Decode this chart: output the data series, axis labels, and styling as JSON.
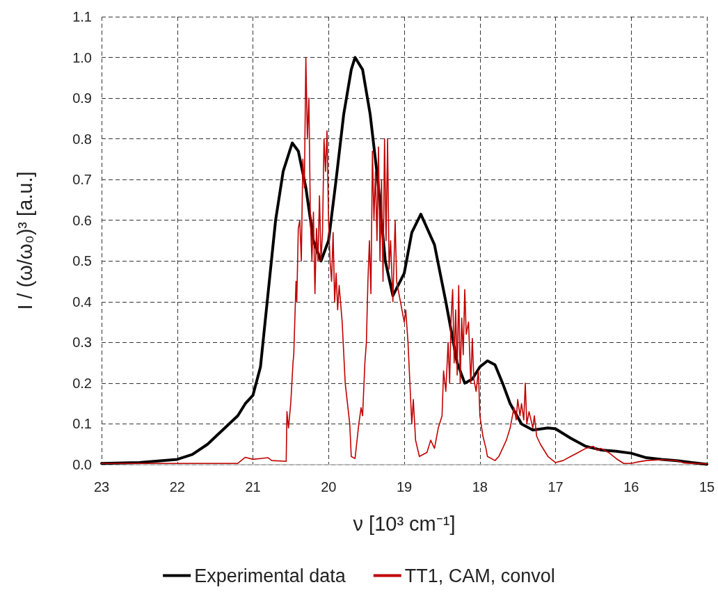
{
  "chart_data": {
    "type": "line",
    "xlabel": "ν [10³ cm⁻¹]",
    "ylabel": "I / (ω/ω₀)³ [a.u.]",
    "xlim": [
      23,
      15
    ],
    "xticks": [
      23,
      22,
      21,
      20,
      19,
      18,
      17,
      16,
      15
    ],
    "ylim": [
      0,
      1.1
    ],
    "yticks": [
      {
        "value": 0,
        "label": "0.0"
      },
      0.1,
      0.2,
      0.3,
      0.4,
      0.5,
      0.6,
      0.7,
      0.8,
      0.9,
      {
        "value": 1,
        "label": "1.0"
      },
      1.1
    ],
    "grid": true,
    "legend": "bottom",
    "marker": "none",
    "line_style": "solid",
    "series": [
      {
        "name": "Experimental data",
        "color": "#000000",
        "x": [
          23,
          22.5,
          22,
          21.8,
          21.6,
          21.4,
          21.2,
          21.1,
          21.0,
          20.9,
          20.8,
          20.7,
          20.6,
          20.48,
          20.4,
          20.3,
          20.2,
          20.1,
          20.0,
          19.9,
          19.8,
          19.7,
          19.65,
          19.55,
          19.45,
          19.35,
          19.25,
          19.15,
          19.0,
          18.9,
          18.78,
          18.6,
          18.45,
          18.3,
          18.2,
          18.1,
          18.0,
          17.9,
          17.8,
          17.7,
          17.6,
          17.45,
          17.3,
          17.1,
          17.0,
          16.8,
          16.6,
          16.4,
          16.2,
          16.0,
          15.8,
          15.6,
          15.4,
          15.2,
          15.0
        ],
        "values": [
          0.003,
          0.005,
          0.013,
          0.025,
          0.05,
          0.085,
          0.12,
          0.15,
          0.17,
          0.24,
          0.42,
          0.6,
          0.72,
          0.79,
          0.77,
          0.68,
          0.55,
          0.5,
          0.55,
          0.7,
          0.86,
          0.97,
          1.0,
          0.97,
          0.86,
          0.7,
          0.5,
          0.415,
          0.47,
          0.57,
          0.615,
          0.54,
          0.4,
          0.25,
          0.2,
          0.21,
          0.24,
          0.255,
          0.245,
          0.2,
          0.15,
          0.1,
          0.085,
          0.09,
          0.088,
          0.065,
          0.045,
          0.036,
          0.033,
          0.028,
          0.017,
          0.013,
          0.01,
          0.005,
          0.001
        ]
      },
      {
        "name": "TT1, CAM, convol",
        "color": "#c00000",
        "x": [
          23,
          21.2,
          21.1,
          21.0,
          20.9,
          20.8,
          20.75,
          20.56,
          20.55,
          20.53,
          20.5,
          20.47,
          20.46,
          20.43,
          20.42,
          20.4,
          20.38,
          20.36,
          20.34,
          20.32,
          20.3,
          20.28,
          20.26,
          20.24,
          20.22,
          20.2,
          20.18,
          20.16,
          20.14,
          20.12,
          20.1,
          20.08,
          20.06,
          20.04,
          20.02,
          20.0,
          19.98,
          19.96,
          19.94,
          19.92,
          19.9,
          19.88,
          19.86,
          19.82,
          19.78,
          19.75,
          19.72,
          19.7,
          19.65,
          19.6,
          19.57,
          19.55,
          19.52,
          19.5,
          19.48,
          19.46,
          19.44,
          19.42,
          19.4,
          19.38,
          19.36,
          19.34,
          19.32,
          19.3,
          19.28,
          19.26,
          19.24,
          19.22,
          19.2,
          19.18,
          19.15,
          19.12,
          19.1,
          19.05,
          19.0,
          18.98,
          18.95,
          18.9,
          18.88,
          18.85,
          18.8,
          18.7,
          18.65,
          18.6,
          18.55,
          18.5,
          18.48,
          18.45,
          18.42,
          18.4,
          18.38,
          18.36,
          18.34,
          18.32,
          18.3,
          18.28,
          18.26,
          18.24,
          18.22,
          18.2,
          18.18,
          18.15,
          18.12,
          18.1,
          18.08,
          18.05,
          18.02,
          18.0,
          17.96,
          17.92,
          17.9,
          17.8,
          17.75,
          17.7,
          17.65,
          17.6,
          17.55,
          17.52,
          17.5,
          17.47,
          17.45,
          17.42,
          17.4,
          17.38,
          17.35,
          17.3,
          17.28,
          17.25,
          17.2,
          17.1,
          17.0,
          16.9,
          16.8,
          16.7,
          16.6,
          16.5,
          16.45,
          16.4,
          16.3,
          16.2,
          16.1,
          16.0,
          15.9,
          15.8,
          15.6,
          15.4,
          15.3,
          15.0
        ],
        "values": [
          0.003,
          0.003,
          0.018,
          0.013,
          0.015,
          0.017,
          0.01,
          0.008,
          0.13,
          0.09,
          0.15,
          0.25,
          0.27,
          0.45,
          0.4,
          0.58,
          0.6,
          0.5,
          0.75,
          0.68,
          1.0,
          0.8,
          0.9,
          0.6,
          0.5,
          0.62,
          0.42,
          0.58,
          0.5,
          0.66,
          0.5,
          0.57,
          0.8,
          0.72,
          0.82,
          0.6,
          0.5,
          0.45,
          0.57,
          0.4,
          0.47,
          0.38,
          0.44,
          0.35,
          0.2,
          0.15,
          0.1,
          0.02,
          0.015,
          0.1,
          0.14,
          0.12,
          0.25,
          0.3,
          0.45,
          0.55,
          0.42,
          0.77,
          0.6,
          0.72,
          0.55,
          0.78,
          0.5,
          0.7,
          0.45,
          0.8,
          0.55,
          0.8,
          0.48,
          0.55,
          0.4,
          0.6,
          0.45,
          0.4,
          0.35,
          0.38,
          0.3,
          0.1,
          0.16,
          0.06,
          0.02,
          0.03,
          0.06,
          0.04,
          0.09,
          0.12,
          0.23,
          0.18,
          0.3,
          0.2,
          0.36,
          0.43,
          0.25,
          0.38,
          0.22,
          0.44,
          0.2,
          0.36,
          0.27,
          0.43,
          0.32,
          0.35,
          0.2,
          0.31,
          0.21,
          0.18,
          0.23,
          0.12,
          0.07,
          0.04,
          0.02,
          0.01,
          0.02,
          0.04,
          0.06,
          0.09,
          0.14,
          0.11,
          0.16,
          0.12,
          0.15,
          0.11,
          0.2,
          0.1,
          0.13,
          0.09,
          0.12,
          0.07,
          0.05,
          0.02,
          0.005,
          0.01,
          0.02,
          0.03,
          0.04,
          0.045,
          0.035,
          0.04,
          0.03,
          0.015,
          0.003,
          0.003,
          0.007,
          0.01,
          0.012,
          0.01,
          0.004,
          0.002
        ]
      }
    ]
  }
}
